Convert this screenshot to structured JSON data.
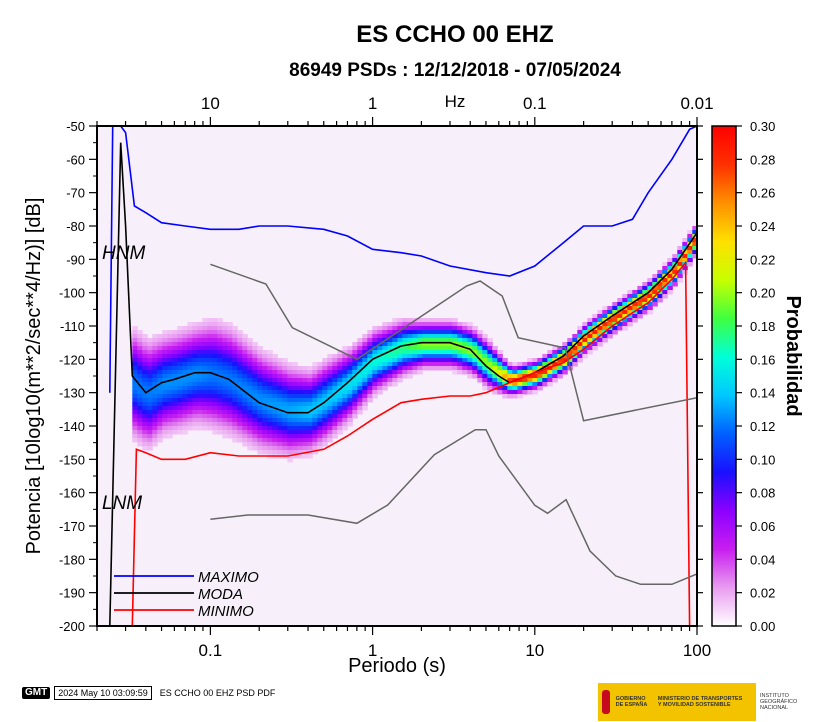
{
  "title": "ES CCHO 00 EHZ",
  "subtitle": "86949 PSDs : 12/12/2018 - 07/05/2024",
  "colorbar": {
    "label": "Probabilidad",
    "ticks": [
      "0.30",
      "0.28",
      "0.26",
      "0.24",
      "0.22",
      "0.20",
      "0.18",
      "0.16",
      "0.14",
      "0.12",
      "0.10",
      "0.08",
      "0.06",
      "0.04",
      "0.02",
      "0.00"
    ],
    "range": [
      0,
      0.3
    ],
    "stops": [
      "#ffffff",
      "#e89cf0",
      "#c81ef0",
      "#8c00ff",
      "#1a10ff",
      "#0060ff",
      "#00c8ff",
      "#00ffd8",
      "#40ff40",
      "#c8ff00",
      "#ffe000",
      "#ff9000",
      "#ff3000",
      "#ff0000"
    ]
  },
  "chart_data": {
    "type": "heatmap",
    "xlabel": "Periodo (s)",
    "ylabel": "Potencia [10log10(m**2/sec**4/Hz)] [dB]",
    "top_axis_label": "Hz",
    "xscale": "log",
    "xlim": [
      0.02,
      100
    ],
    "ylim": [
      -200,
      -50
    ],
    "x_tick_labels": [
      "0.1",
      "1",
      "10",
      "100"
    ],
    "x_ticks": [
      0.1,
      1,
      10,
      100
    ],
    "top_tick_labels": [
      "10",
      "1",
      "0.1",
      "0.01"
    ],
    "top_ticks_period": [
      0.1,
      1,
      10,
      100
    ],
    "y_ticks": [
      -50,
      -60,
      -70,
      -80,
      -90,
      -100,
      -110,
      -120,
      -130,
      -140,
      -150,
      -160,
      -170,
      -180,
      -190,
      -200
    ],
    "y_tick_labels": [
      "-50",
      "-60",
      "-70",
      "-80",
      "-90",
      "-100",
      "-110",
      "-120",
      "-130",
      "-140",
      "-150",
      "-160",
      "-170",
      "-180",
      "-190",
      "-200"
    ],
    "model_labels": [
      "HNM",
      "LNM"
    ],
    "series": [
      {
        "name": "MAXIMO",
        "color": "#0000ff",
        "x": [
          0.024,
          0.025,
          0.028,
          0.03,
          0.034,
          0.04,
          0.05,
          0.07,
          0.1,
          0.15,
          0.2,
          0.3,
          0.5,
          0.7,
          1,
          1.5,
          2,
          3,
          5,
          7,
          10,
          15,
          20,
          30,
          40,
          50,
          70,
          90,
          100
        ],
        "y": [
          -130,
          -50,
          -50,
          -52,
          -74,
          -76,
          -79,
          -80,
          -81,
          -81,
          -80,
          -80,
          -81,
          -83,
          -87,
          -88,
          -89,
          -92,
          -94,
          -95,
          -92,
          -85,
          -80,
          -80,
          -78,
          -70,
          -60,
          -51,
          -50
        ]
      },
      {
        "name": "MODA",
        "color": "#000000",
        "x": [
          0.024,
          0.028,
          0.03,
          0.033,
          0.04,
          0.05,
          0.06,
          0.08,
          0.1,
          0.13,
          0.2,
          0.3,
          0.4,
          0.5,
          0.7,
          1,
          1.5,
          2,
          3,
          4,
          5,
          6,
          7,
          10,
          15,
          20,
          30,
          50,
          70,
          100
        ],
        "y": [
          -200,
          -55,
          -80,
          -125,
          -130,
          -127,
          -126,
          -124,
          -124,
          -126,
          -133,
          -136,
          -136,
          -133,
          -127,
          -120,
          -116,
          -115,
          -115,
          -117,
          -122,
          -125,
          -127,
          -124,
          -119,
          -113,
          -107,
          -100,
          -93,
          -82
        ]
      },
      {
        "name": "MINIMO",
        "color": "#ff0000",
        "x": [
          0.025,
          0.03,
          0.033,
          0.035,
          0.04,
          0.05,
          0.07,
          0.1,
          0.15,
          0.2,
          0.3,
          0.5,
          0.7,
          1,
          1.5,
          2,
          3,
          4,
          5,
          7,
          10,
          15,
          20,
          30,
          50,
          70,
          85,
          90,
          100
        ],
        "y": [
          -200,
          -200,
          -200,
          -147,
          -148,
          -150,
          -150,
          -148,
          -149,
          -149,
          -149,
          -147,
          -143,
          -138,
          -133,
          -132,
          -131,
          -131,
          -130,
          -127,
          -124,
          -121,
          -117,
          -110,
          -103,
          -96,
          -91,
          -200,
          -200
        ]
      },
      {
        "name": "HNM",
        "color": "#666666",
        "x": [
          0.1,
          0.22,
          0.32,
          0.8,
          3.8,
          4.6,
          6.3,
          7.9,
          15.4,
          20,
          100
        ],
        "y": [
          -91.5,
          -97.4,
          -110.5,
          -120,
          -98,
          -96.5,
          -101,
          -113.5,
          -116.6,
          -138.4,
          -131.5
        ]
      },
      {
        "name": "LNM",
        "color": "#666666",
        "x": [
          0.1,
          0.17,
          0.4,
          0.8,
          1.24,
          2.4,
          4.3,
          5,
          6,
          10,
          12,
          15.6,
          21.9,
          31.6,
          45,
          70,
          100
        ],
        "y": [
          -168,
          -166.7,
          -166.7,
          -169.2,
          -163.7,
          -148.6,
          -141.1,
          -141.1,
          -149,
          -163.8,
          -166.2,
          -162.1,
          -177.5,
          -185,
          -187.5,
          -187.5,
          -184.4
        ]
      }
    ],
    "density_ridge": {
      "x": [
        0.033,
        0.04,
        0.05,
        0.06,
        0.08,
        0.1,
        0.13,
        0.2,
        0.3,
        0.4,
        0.5,
        0.7,
        1,
        1.5,
        2,
        3,
        4,
        5,
        6,
        7,
        10,
        15,
        20,
        30,
        50,
        70,
        100
      ],
      "center": [
        -127,
        -130,
        -127,
        -126,
        -124,
        -124,
        -126,
        -132,
        -135,
        -135,
        -132,
        -127,
        -120,
        -116,
        -115,
        -115,
        -117,
        -121,
        -124,
        -126,
        -124,
        -119,
        -113,
        -107,
        -100,
        -93,
        -82
      ],
      "halfwidth": [
        12,
        12,
        11,
        11,
        11,
        12,
        12,
        11,
        10,
        9,
        9,
        8,
        7,
        6,
        5,
        5,
        5,
        5,
        4,
        3,
        3,
        3,
        3,
        3,
        3,
        3,
        3
      ]
    }
  },
  "footer": {
    "logo": "GMT",
    "timestamp": "2024 May 10 03:09:59",
    "caption": "ES CCHO 00 EHZ PSD PDF"
  },
  "banner": {
    "gobierno": "GOBIERNO DE ESPAÑA",
    "ministerio": "MINISTERIO DE TRANSPORTES Y MOVILIDAD SOSTENIBLE",
    "instituto": "INSTITUTO GEOGRÁFICO NACIONAL"
  }
}
